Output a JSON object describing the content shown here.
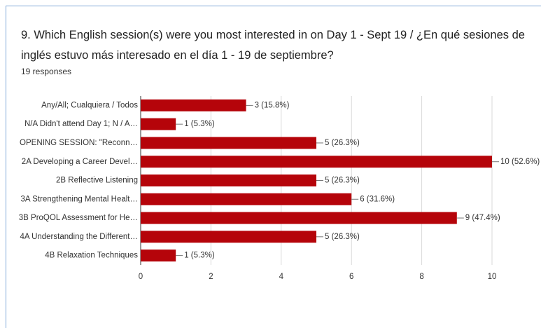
{
  "chart_data": {
    "type": "bar",
    "orientation": "horizontal",
    "title": "9. Which English session(s) were you most interested in on Day 1 - Sept 19 / ¿En qué sesiones de inglés estuvo más interesado en el día 1 - 19 de septiembre?",
    "subtitle": "19 responses",
    "categories": [
      "Any/All; Cualquiera / Todos",
      "N/A Didn't attend Day 1; N / A…",
      "OPENING SESSION: \"Reconn…",
      "2A Developing a Career Devel…",
      "2B Reflective Listening",
      "3A Strengthening Mental Healt…",
      "3B ProQOL Assessment for He…",
      "4A Understanding the Different…",
      "4B Relaxation Techniques"
    ],
    "values": [
      3,
      1,
      5,
      10,
      5,
      6,
      9,
      5,
      1
    ],
    "value_labels": [
      "3 (15.8%)",
      "1 (5.3%)",
      "5 (26.3%)",
      "10 (52.6%)",
      "5 (26.3%)",
      "6 (31.6%)",
      "9 (47.4%)",
      "5 (26.3%)",
      "1 (5.3%)"
    ],
    "color": "#b5040a",
    "xlim": [
      0,
      10
    ],
    "xticks": [
      0,
      2,
      4,
      6,
      8,
      10
    ],
    "grid": true
  }
}
